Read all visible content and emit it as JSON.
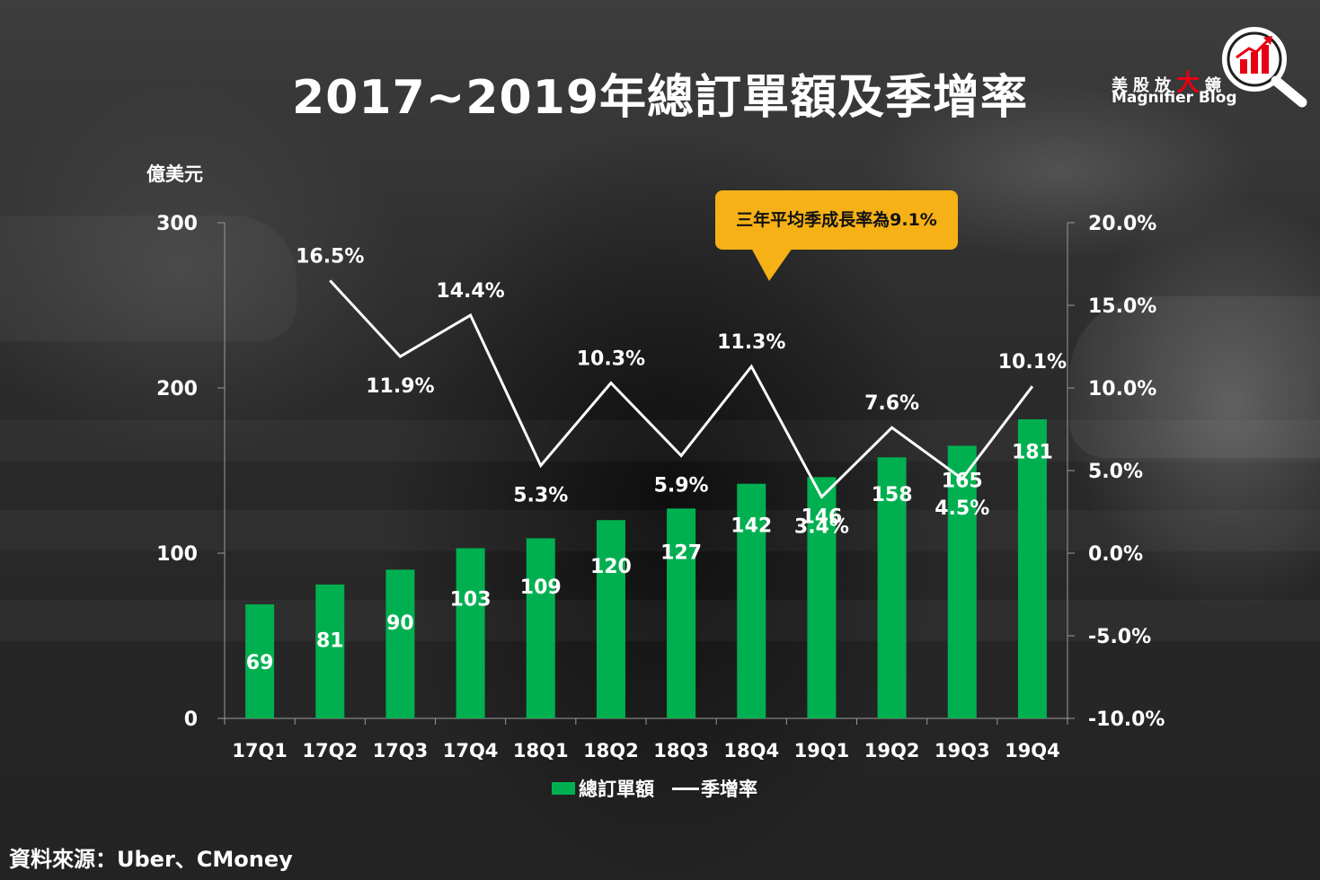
{
  "title": "2017~2019年總訂單額及季增率",
  "logo": {
    "cn_pre": "美股放",
    "cn_big": "大",
    "cn_post": "鏡",
    "en": "Magnifier Blog",
    "icon": "magnifier-chart-icon",
    "accent_color": "#e60012"
  },
  "callout": "三年平均季成長率為9.1%",
  "source": "資料來源：Uber、CMoney",
  "chart_data": {
    "type": "bar",
    "categories": [
      "17Q1",
      "17Q2",
      "17Q3",
      "17Q4",
      "18Q1",
      "18Q2",
      "18Q3",
      "18Q4",
      "19Q1",
      "19Q2",
      "19Q3",
      "19Q4"
    ],
    "series": [
      {
        "name": "總訂單額",
        "type": "bar",
        "axis": "left",
        "color": "#00b050",
        "values": [
          69,
          81,
          90,
          103,
          109,
          120,
          127,
          142,
          146,
          158,
          165,
          181
        ]
      },
      {
        "name": "季增率",
        "type": "line",
        "axis": "right",
        "color": "#ffffff",
        "values": [
          null,
          16.5,
          11.9,
          14.4,
          5.3,
          10.3,
          5.9,
          11.3,
          3.4,
          7.6,
          4.5,
          10.1
        ]
      }
    ],
    "bar_labels": [
      "69",
      "81",
      "90",
      "103",
      "109",
      "120",
      "127",
      "142",
      "146",
      "158",
      "165",
      "181"
    ],
    "line_labels": [
      "",
      "16.5%",
      "11.9%",
      "14.4%",
      "5.3%",
      "10.3%",
      "5.9%",
      "11.3%",
      "3.4%",
      "7.6%",
      "4.5%",
      "10.1%"
    ],
    "y_left_label": "億美元",
    "ylim_left": [
      0,
      300
    ],
    "yticks_left": [
      "0",
      "100",
      "200",
      "300"
    ],
    "ylim_right": [
      -10,
      20
    ],
    "yticks_right": [
      "-10.0%",
      "-5.0%",
      "0.0%",
      "5.0%",
      "10.0%",
      "15.0%",
      "20.0%"
    ],
    "legend": [
      "總訂單額",
      "季增率"
    ],
    "legend_position": "bottom",
    "grid": false
  }
}
